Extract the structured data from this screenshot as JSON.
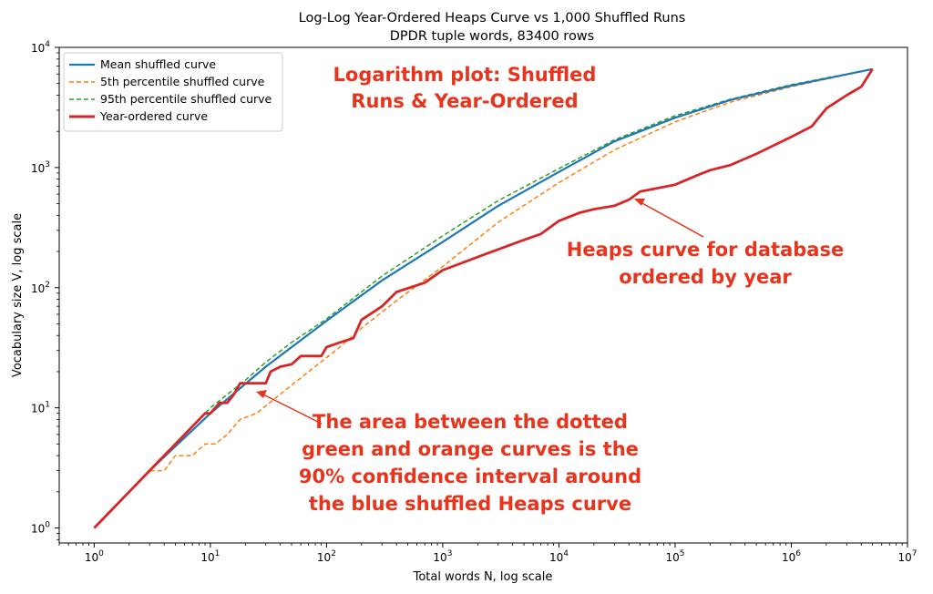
{
  "chart_data": {
    "type": "line",
    "title": "Log-Log Year-Ordered Heaps Curve vs 1,000 Shuffled Runs",
    "subtitle": "DPDR tuple words, 83400 rows",
    "xlabel": "Total words N, log scale",
    "ylabel": "Vocabulary size V, log scale",
    "x_scale": "log",
    "y_scale": "log",
    "xlim": [
      0.5,
      10000000
    ],
    "ylim": [
      0.75,
      10000
    ],
    "x_ticks": [
      {
        "value": 1,
        "base": "10",
        "exp": "0"
      },
      {
        "value": 10,
        "base": "10",
        "exp": "1"
      },
      {
        "value": 100,
        "base": "10",
        "exp": "2"
      },
      {
        "value": 1000,
        "base": "10",
        "exp": "3"
      },
      {
        "value": 10000,
        "base": "10",
        "exp": "4"
      },
      {
        "value": 100000,
        "base": "10",
        "exp": "5"
      },
      {
        "value": 1000000,
        "base": "10",
        "exp": "6"
      },
      {
        "value": 10000000,
        "base": "10",
        "exp": "7"
      }
    ],
    "y_ticks": [
      {
        "value": 1,
        "base": "10",
        "exp": "0"
      },
      {
        "value": 10,
        "base": "10",
        "exp": "1"
      },
      {
        "value": 100,
        "base": "10",
        "exp": "2"
      },
      {
        "value": 1000,
        "base": "10",
        "exp": "3"
      },
      {
        "value": 10000,
        "base": "10",
        "exp": "4"
      }
    ],
    "legend_position": "top-left",
    "grid": false,
    "series": [
      {
        "name": "Mean shuffled curve",
        "color": "#1f77b4",
        "style": "solid",
        "points": [
          [
            1,
            1
          ],
          [
            3,
            3
          ],
          [
            10,
            9
          ],
          [
            30,
            22
          ],
          [
            100,
            53
          ],
          [
            300,
            115
          ],
          [
            1000,
            240
          ],
          [
            3000,
            480
          ],
          [
            10000,
            920
          ],
          [
            30000,
            1650
          ],
          [
            100000,
            2600
          ],
          [
            300000,
            3650
          ],
          [
            1000000,
            4800
          ],
          [
            5000000,
            6600
          ]
        ]
      },
      {
        "name": "5th percentile shuffled curve",
        "color": "#ff7f0e",
        "style": "dashed",
        "points": [
          [
            1,
            1
          ],
          [
            2,
            2
          ],
          [
            3,
            3
          ],
          [
            4,
            3
          ],
          [
            5,
            4
          ],
          [
            7,
            4
          ],
          [
            9,
            5
          ],
          [
            11,
            5
          ],
          [
            14,
            6
          ],
          [
            18,
            8
          ],
          [
            25,
            9
          ],
          [
            40,
            13
          ],
          [
            70,
            20
          ],
          [
            120,
            30
          ],
          [
            200,
            46
          ],
          [
            400,
            78
          ],
          [
            1000,
            150
          ],
          [
            3000,
            350
          ],
          [
            10000,
            750
          ],
          [
            30000,
            1400
          ],
          [
            100000,
            2400
          ],
          [
            300000,
            3500
          ],
          [
            1000000,
            4700
          ],
          [
            5000000,
            6600
          ]
        ]
      },
      {
        "name": "95th percentile shuffled curve",
        "color": "#2ca02c",
        "style": "dashed",
        "points": [
          [
            1,
            1
          ],
          [
            3,
            3
          ],
          [
            10,
            10
          ],
          [
            20,
            17
          ],
          [
            30,
            24
          ],
          [
            50,
            35
          ],
          [
            100,
            55
          ],
          [
            300,
            125
          ],
          [
            1000,
            270
          ],
          [
            3000,
            530
          ],
          [
            10000,
            980
          ],
          [
            30000,
            1700
          ],
          [
            100000,
            2700
          ],
          [
            300000,
            3700
          ],
          [
            1000000,
            4900
          ],
          [
            5000000,
            6600
          ]
        ]
      },
      {
        "name": "Year-ordered curve",
        "color": "#d62728",
        "style": "solid",
        "points": [
          [
            1,
            1
          ],
          [
            3,
            3
          ],
          [
            9,
            9
          ],
          [
            10,
            9
          ],
          [
            12,
            11
          ],
          [
            14,
            11
          ],
          [
            16,
            13
          ],
          [
            18,
            16
          ],
          [
            30,
            16
          ],
          [
            33,
            20
          ],
          [
            40,
            22
          ],
          [
            50,
            23
          ],
          [
            60,
            27
          ],
          [
            90,
            27
          ],
          [
            100,
            32
          ],
          [
            130,
            35
          ],
          [
            170,
            38
          ],
          [
            200,
            54
          ],
          [
            300,
            70
          ],
          [
            400,
            92
          ],
          [
            700,
            110
          ],
          [
            1000,
            140
          ],
          [
            2000,
            180
          ],
          [
            5000,
            250
          ],
          [
            7000,
            280
          ],
          [
            10000,
            360
          ],
          [
            15000,
            420
          ],
          [
            20000,
            450
          ],
          [
            30000,
            480
          ],
          [
            40000,
            540
          ],
          [
            50000,
            630
          ],
          [
            100000,
            720
          ],
          [
            150000,
            850
          ],
          [
            200000,
            950
          ],
          [
            300000,
            1050
          ],
          [
            500000,
            1300
          ],
          [
            1000000,
            1800
          ],
          [
            1500000,
            2200
          ],
          [
            2000000,
            3100
          ],
          [
            3000000,
            4000
          ],
          [
            4000000,
            4700
          ],
          [
            5000000,
            6600
          ]
        ]
      }
    ],
    "annotations": [
      {
        "lines": [
          "Logarithm plot: Shuffled",
          "Runs & Year-Ordered"
        ],
        "arrow": false
      },
      {
        "lines": [
          "Heaps curve for database",
          "ordered by year"
        ],
        "arrow": true,
        "points_to": [
          45000,
          560
        ]
      },
      {
        "lines": [
          "The area between the dotted",
          "green and orange curves is the",
          "90% confidence interval around",
          "the blue shuffled Heaps curve"
        ],
        "arrow": true,
        "points_to": [
          22,
          13
        ]
      }
    ]
  }
}
